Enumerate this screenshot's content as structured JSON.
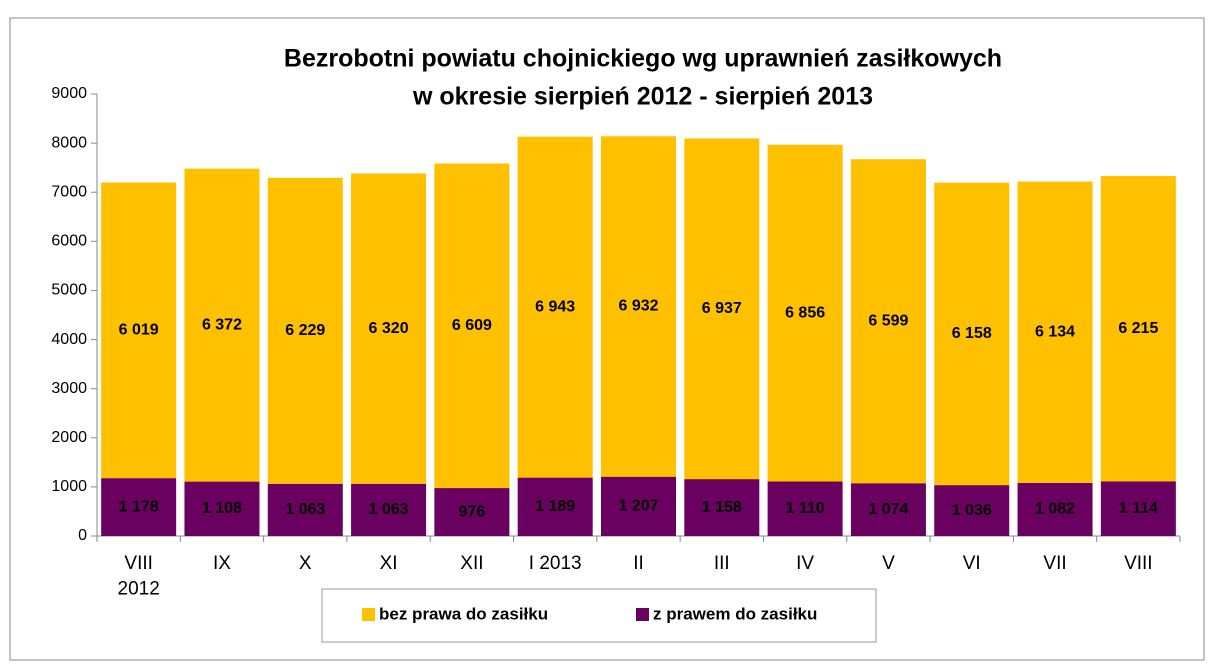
{
  "chart_data": {
    "type": "stacked_bar",
    "title": [
      "Bezrobotni powiatu chojnickiego wg uprawnień zasiłkowych",
      "w okresie sierpień 2012 - sierpień 2013"
    ],
    "categories": [
      "VIII\n2012",
      "IX",
      "X",
      "XI",
      "XII",
      "I 2013",
      "II",
      "III",
      "IV",
      "V",
      "VI",
      "VII",
      "VIII"
    ],
    "series": [
      {
        "name": "bez prawa do zasiłku",
        "color": "#ffc000",
        "values": [
          6019,
          6372,
          6229,
          6320,
          6609,
          6943,
          6932,
          6937,
          6856,
          6599,
          6158,
          6134,
          6215
        ],
        "value_labels": [
          "6 019",
          "6 372",
          "6 229",
          "6 320",
          "6 609",
          "6 943",
          "6 932",
          "6 937",
          "6 856",
          "6 599",
          "6 158",
          "6 134",
          "6 215"
        ]
      },
      {
        "name": "z prawem do zasiłku",
        "color": "#6a0060",
        "values": [
          1178,
          1108,
          1063,
          1063,
          976,
          1189,
          1207,
          1158,
          1110,
          1074,
          1036,
          1082,
          1114
        ],
        "value_labels": [
          "1 178",
          "1 108",
          "1 063",
          "1 063",
          "976",
          "1 189",
          "1 207",
          "1 158",
          "1 110",
          "1 074",
          "1 036",
          "1 082",
          "1 114"
        ]
      }
    ],
    "ylim": [
      0,
      9000
    ],
    "yticks": [
      0,
      1000,
      2000,
      3000,
      4000,
      5000,
      6000,
      7000,
      8000,
      9000
    ],
    "legend": "bottom"
  }
}
